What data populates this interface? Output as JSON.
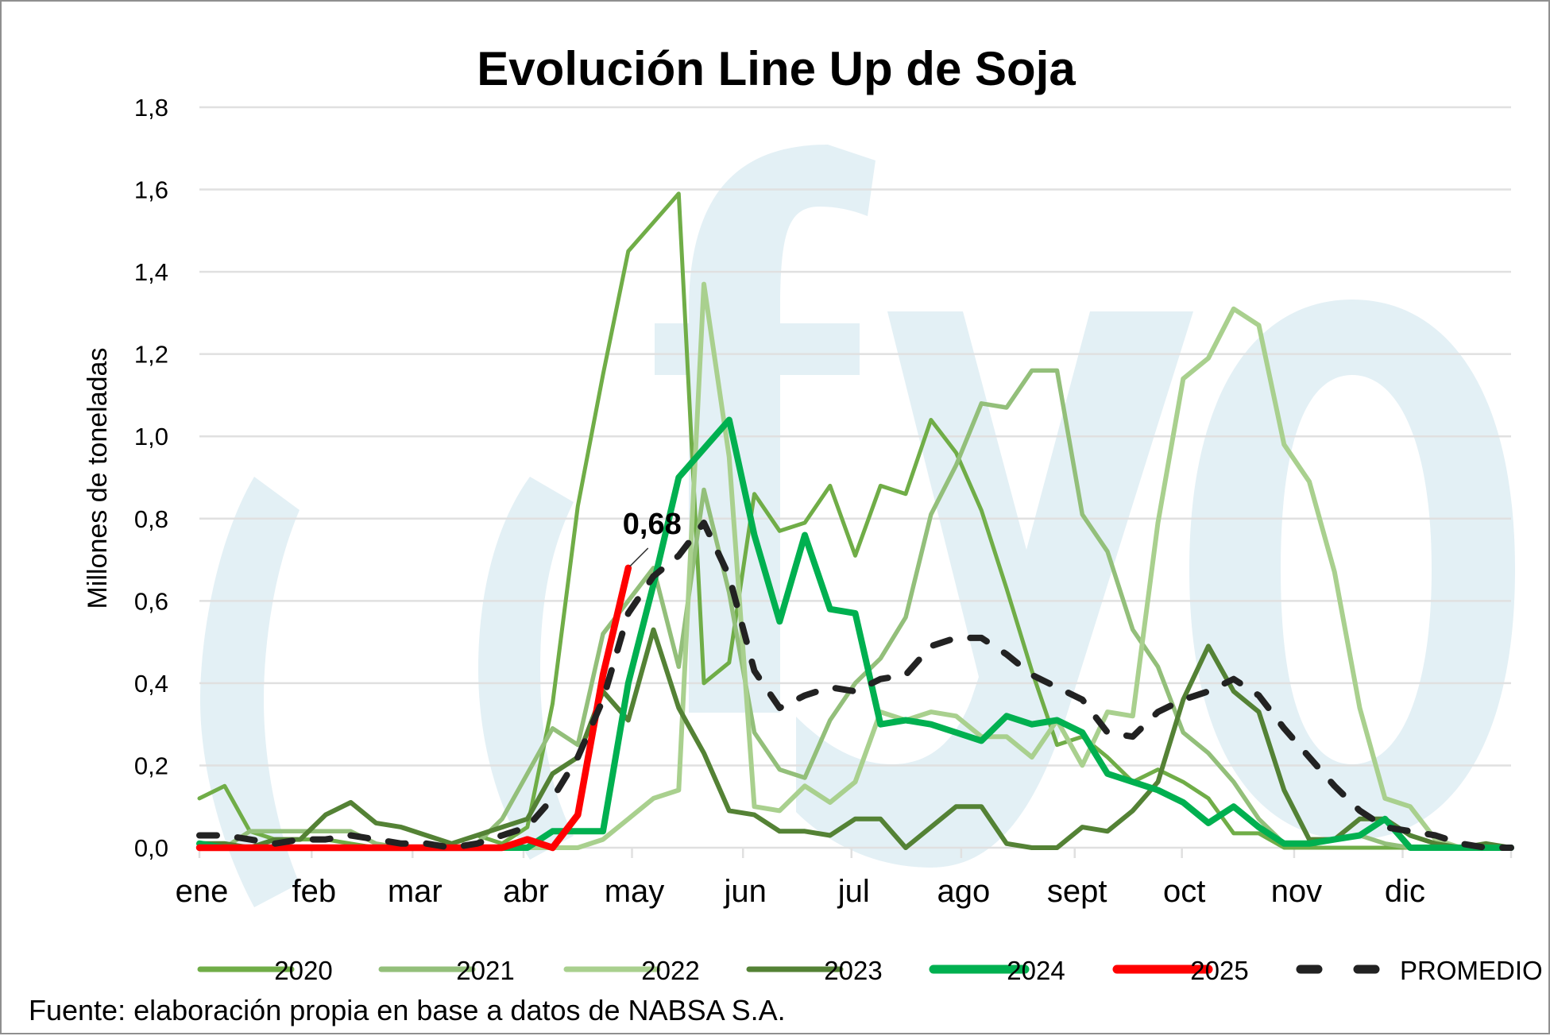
{
  "colors": {
    "2020": "#70AD47",
    "2021": "#93BF7A",
    "2022": "#A9D08E",
    "2023": "#548235",
    "2024": "#00B050",
    "2025": "#FF0000",
    "PROMEDIO": "#222222",
    "grid": "#e0e0e0",
    "watermark": "#e3f0f5"
  },
  "watermark": {
    "text": "(fyo"
  },
  "chart_data": {
    "type": "line",
    "title": "Evolución Line Up de Soja",
    "xlabel": "",
    "ylabel": "Millones de toneladas",
    "ylim": [
      0,
      1.8
    ],
    "yticks": [
      0,
      0.2,
      0.4,
      0.6,
      0.8,
      1.0,
      1.2,
      1.4,
      1.6,
      1.8
    ],
    "ytick_labels": [
      "0,0",
      "0,2",
      "0,4",
      "0,6",
      "0,8",
      "1,0",
      "1,2",
      "1,4",
      "1,6",
      "1,8"
    ],
    "x_unit": "week",
    "x_count": 53,
    "month_labels": [
      "ene",
      "feb",
      "mar",
      "abr",
      "may",
      "jun",
      "jul",
      "ago",
      "sept",
      "oct",
      "nov",
      "dic"
    ],
    "month_start_week": [
      1,
      5.45,
      9.45,
      13.85,
      18.15,
      22.55,
      26.85,
      31.2,
      35.7,
      39.95,
      44.4,
      48.7
    ],
    "grid": true,
    "legend_position": "bottom",
    "series": [
      {
        "name": "2020",
        "values": [
          0.12,
          0.15,
          0.04,
          0.02,
          0.02,
          0.02,
          0.01,
          0.0,
          0.0,
          0.0,
          0.01,
          0.03,
          0.01,
          0.05,
          0.35,
          0.83,
          1.15,
          1.45,
          1.52,
          1.59,
          0.4,
          0.45,
          0.86,
          0.77,
          0.79,
          0.88,
          0.71,
          0.88,
          0.86,
          1.04,
          0.96,
          0.82,
          0.63,
          0.43,
          0.25,
          0.27,
          0.22,
          0.16,
          0.19,
          0.16,
          0.12,
          0.035,
          0.035,
          0.0,
          0.0,
          0.0,
          0.0,
          0.0,
          0.0,
          0.0,
          0.0,
          0.0,
          0.0
        ]
      },
      {
        "name": "2021",
        "values": [
          0.01,
          0.0,
          0.04,
          0.04,
          0.04,
          0.04,
          0.04,
          0.01,
          0.0,
          0.0,
          0.0,
          0.01,
          0.07,
          0.18,
          0.29,
          0.25,
          0.52,
          0.6,
          0.68,
          0.44,
          0.87,
          0.62,
          0.28,
          0.19,
          0.17,
          0.31,
          0.4,
          0.46,
          0.56,
          0.81,
          0.93,
          1.08,
          1.07,
          1.16,
          1.16,
          0.81,
          0.72,
          0.53,
          0.44,
          0.28,
          0.23,
          0.16,
          0.07,
          0.01,
          0.01,
          0.02,
          0.03,
          0.01,
          0.0,
          0.0,
          0.0,
          0.0,
          0.0
        ]
      },
      {
        "name": "2022",
        "values": [
          0.0,
          0.0,
          0.0,
          0.0,
          0.0,
          0.0,
          0.0,
          0.0,
          0.0,
          0.0,
          0.0,
          0.0,
          0.0,
          0.0,
          0.0,
          0.0,
          0.02,
          0.07,
          0.12,
          0.14,
          1.37,
          0.95,
          0.1,
          0.09,
          0.15,
          0.11,
          0.16,
          0.33,
          0.31,
          0.33,
          0.32,
          0.27,
          0.27,
          0.22,
          0.31,
          0.2,
          0.33,
          0.32,
          0.79,
          1.14,
          1.19,
          1.31,
          1.27,
          0.98,
          0.89,
          0.67,
          0.34,
          0.12,
          0.1,
          0.02,
          0.0,
          0.0,
          0.0
        ]
      },
      {
        "name": "2023",
        "values": [
          0.01,
          0.01,
          0.0,
          0.02,
          0.02,
          0.08,
          0.11,
          0.06,
          0.05,
          0.03,
          0.01,
          0.03,
          0.05,
          0.07,
          0.18,
          0.22,
          0.38,
          0.31,
          0.53,
          0.34,
          0.23,
          0.09,
          0.08,
          0.04,
          0.04,
          0.03,
          0.07,
          0.07,
          0.0,
          0.05,
          0.1,
          0.1,
          0.01,
          0.0,
          0.0,
          0.05,
          0.04,
          0.09,
          0.16,
          0.36,
          0.49,
          0.38,
          0.33,
          0.14,
          0.02,
          0.02,
          0.07,
          0.07,
          0.03,
          0.01,
          0.0,
          0.01,
          0.0
        ]
      },
      {
        "name": "2024",
        "values": [
          0.01,
          0.0,
          0.0,
          0.0,
          0.0,
          0.0,
          0.0,
          0.0,
          0.0,
          0.0,
          0.0,
          0.0,
          0.0,
          0.0,
          0.04,
          0.04,
          0.04,
          0.4,
          0.64,
          0.9,
          0.97,
          1.04,
          0.76,
          0.55,
          0.76,
          0.58,
          0.57,
          0.3,
          0.31,
          0.3,
          0.28,
          0.26,
          0.32,
          0.3,
          0.31,
          0.28,
          0.18,
          0.16,
          0.14,
          0.11,
          0.06,
          0.1,
          0.05,
          0.01,
          0.01,
          0.02,
          0.03,
          0.07,
          0.0,
          0.0,
          0.0,
          0.0,
          0.0
        ]
      },
      {
        "name": "2025",
        "values": [
          0.0,
          0.0,
          0.0,
          0.0,
          0.0,
          0.0,
          0.0,
          0.0,
          0.0,
          0.0,
          0.0,
          0.0,
          0.0,
          0.02,
          0.0,
          0.08,
          0.42,
          0.68
        ]
      },
      {
        "name": "PROMEDIO",
        "dashed": true,
        "values": [
          0.03,
          0.03,
          0.02,
          0.01,
          0.02,
          0.02,
          0.03,
          0.02,
          0.01,
          0.01,
          0.0,
          0.01,
          0.03,
          0.05,
          0.12,
          0.22,
          0.36,
          0.57,
          0.66,
          0.71,
          0.79,
          0.66,
          0.43,
          0.34,
          0.37,
          0.39,
          0.38,
          0.41,
          0.42,
          0.49,
          0.51,
          0.51,
          0.47,
          0.42,
          0.39,
          0.36,
          0.28,
          0.27,
          0.33,
          0.36,
          0.38,
          0.41,
          0.37,
          0.29,
          0.22,
          0.15,
          0.09,
          0.05,
          0.04,
          0.03,
          0.01,
          0.0,
          0.0
        ]
      }
    ],
    "annotations": [
      {
        "series": "2025",
        "week": 18,
        "value": 0.68,
        "text": "0,68"
      }
    ]
  },
  "legend": {
    "items": [
      "2020",
      "2021",
      "2022",
      "2023",
      "2024",
      "2025",
      "PROMEDIO"
    ]
  },
  "source": "Fuente: elaboración propia en base a datos de NABSA S.A."
}
